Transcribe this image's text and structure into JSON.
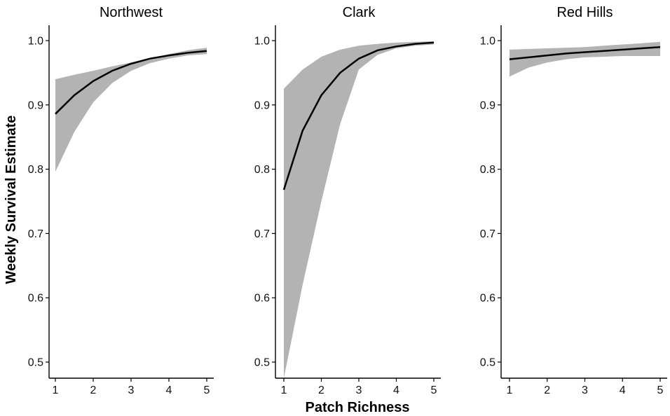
{
  "chart_data": {
    "type": "line",
    "xlabel": "Patch Richness",
    "ylabel": "Weekly Survival Estimate",
    "xlim": [
      1,
      5
    ],
    "ylim": [
      0.5,
      1.0
    ],
    "x_ticks": [
      1,
      2,
      3,
      4,
      5
    ],
    "y_ticks": [
      "0.5",
      "0.6",
      "0.7",
      "0.8",
      "0.9",
      "1.0"
    ],
    "grid": false,
    "legend": "none",
    "band_color": "#b3b3b3",
    "line_color": "#000000",
    "panels": [
      {
        "title": "Northwest",
        "x": [
          1,
          1.5,
          2,
          2.5,
          3,
          3.5,
          4,
          4.5,
          5
        ],
        "estimate": [
          0.886,
          0.915,
          0.937,
          0.953,
          0.964,
          0.972,
          0.977,
          0.981,
          0.984
        ],
        "lower": [
          0.796,
          0.858,
          0.904,
          0.934,
          0.953,
          0.965,
          0.972,
          0.977,
          0.979
        ],
        "upper": [
          0.94,
          0.947,
          0.953,
          0.96,
          0.966,
          0.972,
          0.979,
          0.985,
          0.989
        ]
      },
      {
        "title": "Clark",
        "x": [
          1,
          1.5,
          2,
          2.5,
          3,
          3.5,
          4,
          4.5,
          5
        ],
        "estimate": [
          0.768,
          0.86,
          0.915,
          0.95,
          0.972,
          0.985,
          0.991,
          0.995,
          0.997
        ],
        "lower": [
          0.475,
          0.62,
          0.75,
          0.87,
          0.955,
          0.978,
          0.988,
          0.992,
          0.994
        ],
        "upper": [
          0.925,
          0.955,
          0.975,
          0.986,
          0.992,
          0.995,
          0.997,
          0.998,
          0.999
        ]
      },
      {
        "title": "Red Hills",
        "x": [
          1,
          1.5,
          2,
          2.5,
          3,
          3.5,
          4,
          4.5,
          5
        ],
        "estimate": [
          0.971,
          0.974,
          0.977,
          0.98,
          0.982,
          0.984,
          0.986,
          0.988,
          0.99
        ],
        "lower": [
          0.944,
          0.958,
          0.966,
          0.971,
          0.974,
          0.975,
          0.976,
          0.976,
          0.976
        ],
        "upper": [
          0.986,
          0.987,
          0.988,
          0.989,
          0.99,
          0.992,
          0.994,
          0.996,
          0.998
        ]
      }
    ]
  }
}
